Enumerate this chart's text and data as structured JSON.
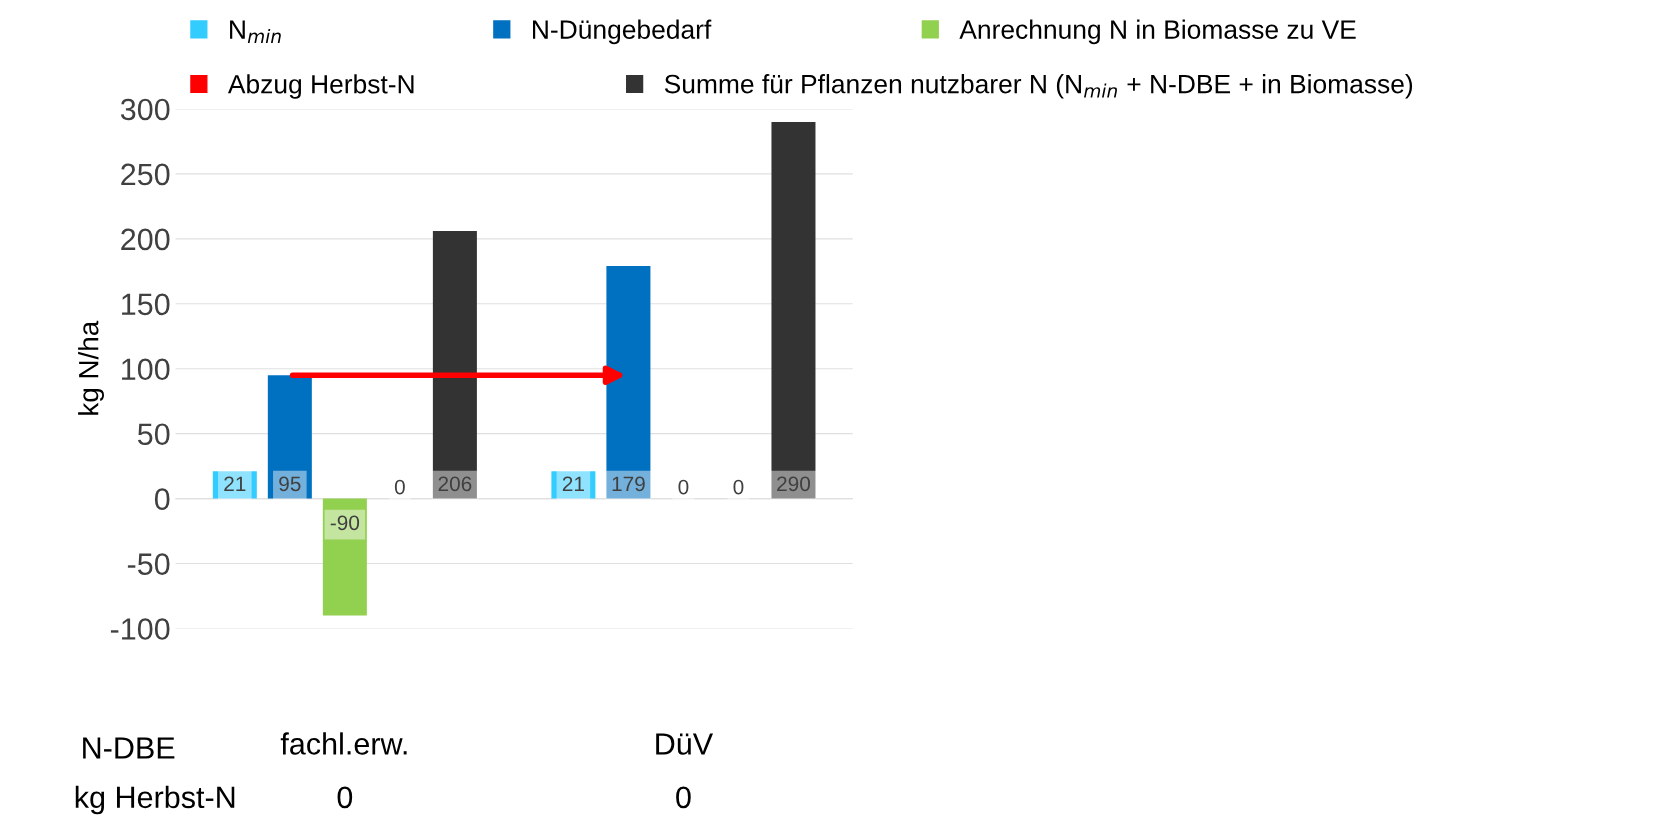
{
  "chart_data": {
    "type": "bar",
    "ylabel": "kg N/ha",
    "categories": [
      "fachl.erw.",
      "DüV"
    ],
    "series": [
      {
        "name": "N$_{min}$",
        "color": "#33ccff",
        "values": [
          21,
          21
        ]
      },
      {
        "name": "N-Düngebedarf",
        "color": "#0070c0",
        "values": [
          95,
          179
        ]
      },
      {
        "name": "Anrechnung N in Biomasse zu VE",
        "color": "#92d050",
        "values": [
          -90,
          0
        ]
      },
      {
        "name": "Abzug Herbst-N",
        "color": "#ff0000",
        "values": [
          0,
          0
        ]
      },
      {
        "name": "Summe für Pflanzen nutzbarer N (N$_{min}$ + N-DBE + in Biomasse)",
        "color": "#333333",
        "values": [
          206,
          290
        ]
      }
    ],
    "ylim": [
      -100,
      300
    ],
    "yticks": [
      -100,
      -50,
      0,
      50,
      100,
      150,
      200,
      250,
      300
    ],
    "grid": "y",
    "legend": "top",
    "data_labels": true,
    "annotations": [
      "N-DBE",
      "kg Herbst-N",
      "0",
      "0"
    ]
  }
}
